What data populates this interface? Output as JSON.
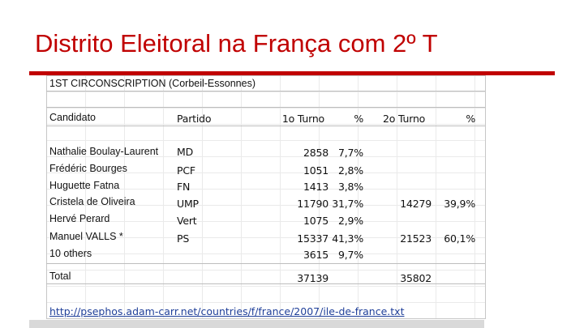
{
  "title": "Distrito Eleitoral na França com 2º T",
  "table": {
    "heading": "1ST CIRCONSCRIPTION (Corbeil-Essonnes)",
    "headers": [
      "Candidato",
      "Partido",
      "1o Turno",
      "%",
      "2o Turno",
      "%"
    ],
    "rows": [
      [
        "Nathalie Boulay-Laurent",
        "MD",
        "2858",
        "7,7%",
        "",
        ""
      ],
      [
        "Frédéric Bourges",
        "PCF",
        "1051",
        "2,8%",
        "",
        ""
      ],
      [
        "Huguette Fatna",
        "FN",
        "1413",
        "3,8%",
        "",
        ""
      ],
      [
        "Cristela de Oliveira",
        "UMP",
        "11790",
        "31,7%",
        "14279",
        "39,9%"
      ],
      [
        "Hervé Perard",
        "Vert",
        "1075",
        "2,9%",
        "",
        ""
      ],
      [
        "Manuel VALLS *",
        "PS",
        "15337",
        "41,3%",
        "21523",
        "60,1%"
      ],
      [
        "10 others",
        "",
        "3615",
        "9,7%",
        "",
        ""
      ]
    ],
    "total": [
      "Total",
      "",
      "37139",
      "",
      "35802",
      ""
    ]
  },
  "source_url": "http://psephos.adam-carr.net/countries/f/france/2007/ile-de-france.txt"
}
